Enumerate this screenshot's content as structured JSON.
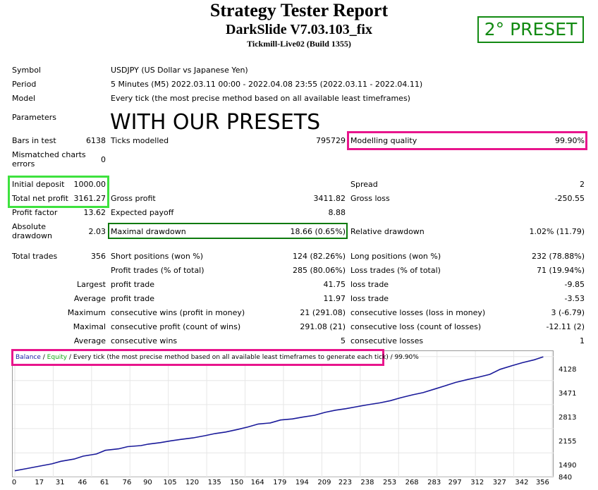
{
  "header": {
    "title": "Strategy Tester Report",
    "subtitle": "DarkSlide V7.03.103_fix",
    "build": "Tickmill-Live02 (Build 1355)",
    "preset_badge": "2° PRESET"
  },
  "info": {
    "symbol_label": "Symbol",
    "symbol_value": "USDJPY (US Dollar vs Japanese Yen)",
    "period_label": "Period",
    "period_value": "5 Minutes (M5) 2022.03.11 00:00 - 2022.04.08 23:55 (2022.03.11 - 2022.04.11)",
    "model_label": "Model",
    "model_value": "Every tick (the most precise method based on all available least timeframes)",
    "parameters_label": "Parameters",
    "parameters_note": "WITH OUR PRESETS"
  },
  "stats": {
    "bars_label": "Bars in test",
    "bars_value": "6138",
    "ticks_label": "Ticks modelled",
    "ticks_value": "795729",
    "quality_label": "Modelling quality",
    "quality_value": "99.90%",
    "mismatch_label_1": "Mismatched charts",
    "mismatch_label_2": "errors",
    "mismatch_value": "0",
    "initial_label": "Initial deposit",
    "initial_value": "1000.00",
    "spread_label": "Spread",
    "spread_value": "2",
    "netprofit_label": "Total net profit",
    "netprofit_value": "3161.27",
    "grossprofit_label": "Gross profit",
    "grossprofit_value": "3411.82",
    "grossloss_label": "Gross loss",
    "grossloss_value": "-250.55",
    "pf_label": "Profit factor",
    "pf_value": "13.62",
    "payoff_label": "Expected payoff",
    "payoff_value": "8.88",
    "absdd_label_1": "Absolute",
    "absdd_label_2": "drawdown",
    "absdd_value": "2.03",
    "maxdd_label": "Maximal drawdown",
    "maxdd_value": "18.66 (0.65%)",
    "reldd_label": "Relative drawdown",
    "reldd_value": "1.02% (11.79)",
    "trades_label": "Total trades",
    "trades_value": "356",
    "short_label": "Short positions (won %)",
    "short_value": "124 (82.26%)",
    "long_label": "Long positions (won %)",
    "long_value": "232 (78.88%)",
    "profittr_label": "Profit trades (% of total)",
    "profittr_value": "285 (80.06%)",
    "losstr_label": "Loss trades (% of total)",
    "losstr_value": "71 (19.94%)",
    "largest_label": "Largest",
    "largest_profit_label": "profit trade",
    "largest_profit_value": "41.75",
    "largest_loss_label": "loss trade",
    "largest_loss_value": "-9.85",
    "average_label": "Average",
    "average_profit_label": "profit trade",
    "average_profit_value": "11.97",
    "average_loss_label": "loss trade",
    "average_loss_value": "-3.53",
    "maximum_label": "Maximum",
    "max_wins_label": "consecutive wins (profit in money)",
    "max_wins_value": "21 (291.08)",
    "max_losses_label": "consecutive losses (loss in money)",
    "max_losses_value": "3 (-6.79)",
    "maximal_label": "Maximal",
    "maximal_profit_label": "consecutive profit (count of wins)",
    "maximal_profit_value": "291.08 (21)",
    "maximal_loss_label": "consecutive loss (count of losses)",
    "maximal_loss_value": "-12.11 (2)",
    "average2_label": "Average",
    "avg_wins_label": "consecutive wins",
    "avg_wins_value": "5",
    "avg_losses_label": "consecutive losses",
    "avg_losses_value": "1"
  },
  "legend": {
    "balance": "Balance",
    "sep1": " / ",
    "equity": "Equity",
    "rest": " / Every tick (the most precise method based on all available least timeframes to generate each tick)",
    "quality": " / 99.90%"
  },
  "colors": {
    "balance_line": "#1a1a9a",
    "highlight_green": "#3ee23e",
    "highlight_dark_green": "#0d7a0d",
    "highlight_pink": "#e8158c"
  },
  "chart_data": {
    "type": "line",
    "title": "",
    "xlabel": "",
    "ylabel": "",
    "x_ticks": [
      0,
      17,
      31,
      46,
      61,
      76,
      90,
      105,
      120,
      135,
      150,
      164,
      179,
      194,
      209,
      223,
      238,
      253,
      268,
      283,
      297,
      312,
      327,
      342,
      356
    ],
    "y_ticks": [
      840,
      1490,
      2155,
      2813,
      3471,
      4128
    ],
    "xlim": [
      0,
      362
    ],
    "ylim": [
      840,
      4200
    ],
    "series": [
      {
        "name": "Balance",
        "x": [
          0,
          8,
          17,
          25,
          31,
          40,
          46,
          55,
          61,
          70,
          76,
          85,
          90,
          98,
          105,
          112,
          120,
          128,
          135,
          142,
          150,
          157,
          164,
          172,
          179,
          187,
          194,
          202,
          209,
          216,
          223,
          231,
          238,
          246,
          253,
          260,
          268,
          275,
          283,
          290,
          297,
          305,
          312,
          320,
          327,
          335,
          342,
          350,
          356
        ],
        "y": [
          1000,
          1060,
          1130,
          1190,
          1260,
          1320,
          1400,
          1460,
          1560,
          1600,
          1660,
          1690,
          1730,
          1770,
          1820,
          1860,
          1900,
          1960,
          2020,
          2060,
          2130,
          2200,
          2280,
          2310,
          2390,
          2420,
          2470,
          2520,
          2600,
          2660,
          2700,
          2760,
          2810,
          2860,
          2920,
          3000,
          3080,
          3140,
          3240,
          3330,
          3420,
          3500,
          3560,
          3640,
          3780,
          3880,
          3960,
          4040,
          4120
        ]
      }
    ]
  }
}
